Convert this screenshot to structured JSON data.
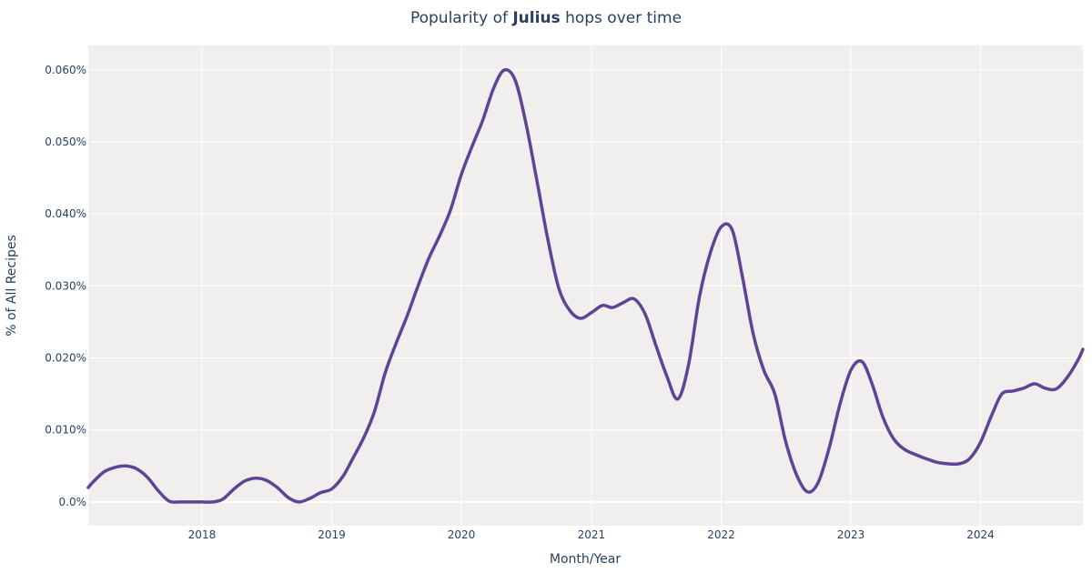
{
  "chart_data": {
    "type": "line",
    "title_prefix": "Popularity of ",
    "title_bold": "Julius",
    "title_suffix": " hops over time",
    "xlabel": "Month/Year",
    "ylabel": "% of All Recipes",
    "x_tick_labels": [
      "2018",
      "2019",
      "2020",
      "2021",
      "2022",
      "2023",
      "2024"
    ],
    "y_tick_labels": [
      "0.0%",
      "0.010%",
      "0.020%",
      "0.030%",
      "0.040%",
      "0.050%",
      "0.060%"
    ],
    "y_ticks": [
      0,
      0.01,
      0.02,
      0.03,
      0.04,
      0.05,
      0.06
    ],
    "xlim": [
      "2017-02-15",
      "2024-10-15"
    ],
    "ylim": [
      -0.0033,
      0.0634
    ],
    "grid": true,
    "legend": "none",
    "colors": {
      "plot_bg": "#f0efee",
      "grid": "#ffffff",
      "line": "#5e4593",
      "text": "#2a3f5f"
    },
    "series": [
      {
        "x": [
          "2017-02-15",
          "2017-03-01",
          "2017-04-01",
          "2017-05-01",
          "2017-06-01",
          "2017-07-01",
          "2017-08-01",
          "2017-09-01",
          "2017-10-01",
          "2017-11-01",
          "2017-12-01",
          "2018-01-01",
          "2018-02-01",
          "2018-03-01",
          "2018-04-01",
          "2018-05-01",
          "2018-06-01",
          "2018-07-01",
          "2018-08-01",
          "2018-09-01",
          "2018-10-01",
          "2018-11-01",
          "2018-12-01",
          "2019-01-01",
          "2019-02-01",
          "2019-03-01",
          "2019-04-01",
          "2019-05-01",
          "2019-06-01",
          "2019-07-01",
          "2019-08-01",
          "2019-09-01",
          "2019-10-01",
          "2019-11-01",
          "2019-12-01",
          "2020-01-01",
          "2020-02-01",
          "2020-03-01",
          "2020-04-01",
          "2020-05-01",
          "2020-06-01",
          "2020-07-01",
          "2020-08-01",
          "2020-09-01",
          "2020-10-01",
          "2020-11-01",
          "2020-12-01",
          "2021-01-01",
          "2021-02-01",
          "2021-03-01",
          "2021-04-01",
          "2021-05-01",
          "2021-06-01",
          "2021-07-01",
          "2021-08-01",
          "2021-09-01",
          "2021-10-01",
          "2021-11-01",
          "2021-12-01",
          "2022-01-01",
          "2022-02-01",
          "2022-03-01",
          "2022-04-01",
          "2022-05-01",
          "2022-06-01",
          "2022-07-01",
          "2022-08-01",
          "2022-09-01",
          "2022-10-01",
          "2022-11-01",
          "2022-12-01",
          "2023-01-01",
          "2023-02-01",
          "2023-03-01",
          "2023-04-01",
          "2023-05-01",
          "2023-06-01",
          "2023-07-01",
          "2023-08-01",
          "2023-09-01",
          "2023-10-01",
          "2023-11-01",
          "2023-12-01",
          "2024-01-01",
          "2024-02-01",
          "2024-03-01",
          "2024-04-01",
          "2024-05-01",
          "2024-06-01",
          "2024-07-01",
          "2024-08-01",
          "2024-09-01",
          "2024-10-01",
          "2024-10-15"
        ],
        "values": [
          0.002,
          0.0028,
          0.0042,
          0.0048,
          0.005,
          0.0046,
          0.0034,
          0.0015,
          0.0001,
          0.0,
          0.0,
          0.0,
          0.0,
          0.0004,
          0.0018,
          0.0029,
          0.0033,
          0.003,
          0.002,
          0.0006,
          0.0,
          0.0005,
          0.0013,
          0.0018,
          0.0035,
          0.006,
          0.0089,
          0.0125,
          0.018,
          0.022,
          0.0258,
          0.03,
          0.0338,
          0.037,
          0.0405,
          0.0455,
          0.0495,
          0.053,
          0.0575,
          0.06,
          0.0585,
          0.0525,
          0.0445,
          0.0363,
          0.0297,
          0.0266,
          0.0255,
          0.0263,
          0.0273,
          0.027,
          0.0277,
          0.0282,
          0.0261,
          0.0218,
          0.0175,
          0.0143,
          0.019,
          0.0285,
          0.0345,
          0.0382,
          0.0378,
          0.0315,
          0.0234,
          0.0183,
          0.015,
          0.0085,
          0.0038,
          0.0014,
          0.0027,
          0.0075,
          0.0135,
          0.0183,
          0.0195,
          0.0165,
          0.0118,
          0.0088,
          0.0073,
          0.0066,
          0.006,
          0.0055,
          0.0053,
          0.0053,
          0.006,
          0.0083,
          0.012,
          0.015,
          0.0154,
          0.0158,
          0.0164,
          0.0158,
          0.0157,
          0.0173,
          0.0197,
          0.0212
        ]
      }
    ]
  }
}
